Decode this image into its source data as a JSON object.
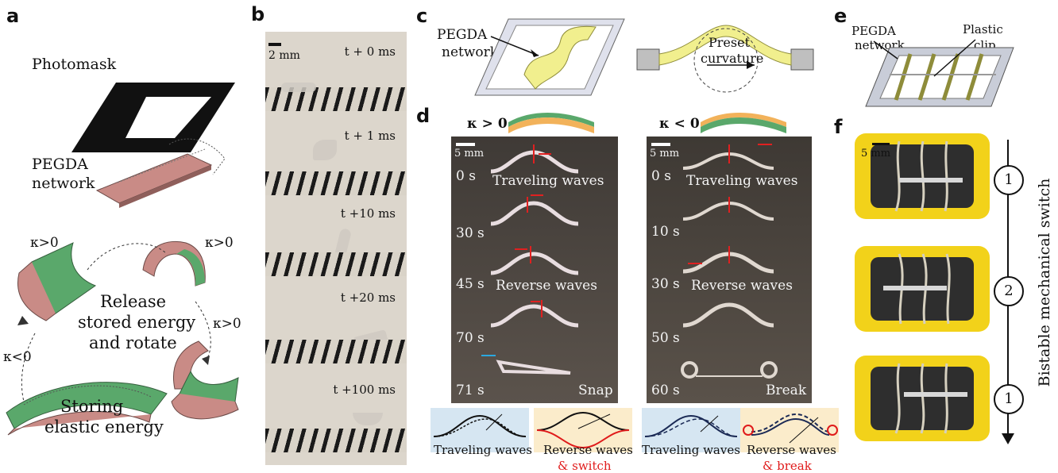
{
  "panels": {
    "a": "a",
    "b": "b",
    "c": "c",
    "d": "d",
    "e": "e",
    "f": "f"
  },
  "panel_a": {
    "photomask": "Photomask",
    "pegda_line1": "PEGDA",
    "pegda_line2": "network",
    "kappa_pos_1": "κ>0",
    "kappa_pos_2": "κ>0",
    "kappa_pos_3": "κ>0",
    "kappa_neg": "κ<0",
    "release_1": "Release",
    "release_2": "stored energy",
    "release_3": "and rotate",
    "storing_1": "Storing",
    "storing_2": "elastic energy"
  },
  "panel_b": {
    "scale": "2 mm",
    "times": [
      "t + 0 ms",
      "t + 1 ms",
      "t +10 ms",
      "t +20 ms",
      "t +100 ms"
    ]
  },
  "panel_c": {
    "pegda_1": "PEGDA",
    "pegda_2": "network",
    "preset_1": "Preset",
    "preset_2": "curvature"
  },
  "panel_d": {
    "kappa_pos": "κ > 0",
    "kappa_neg": "κ < 0",
    "scale_left": "5 mm",
    "scale_right": "5 mm",
    "left_times": [
      "0 s",
      "30 s",
      "45 s",
      "70 s",
      "71 s"
    ],
    "right_times": [
      "0 s",
      "10 s",
      "30 s",
      "50 s",
      "60 s"
    ],
    "left_traveling": "Traveling waves",
    "left_reverse": "Reverse waves",
    "left_snap": "Snap",
    "right_traveling": "Traveling waves",
    "right_reverse": "Reverse waves",
    "right_break": "Break",
    "sch_1": "Traveling waves",
    "sch_2a": "Reverse waves",
    "sch_2b": "& switch",
    "sch_3": "Traveling waves",
    "sch_4a": "Reverse waves",
    "sch_4b": "& break"
  },
  "panel_e": {
    "pegda_1": "PEGDA",
    "pegda_2": "network",
    "clip_1": "Plastic",
    "clip_2": "clip"
  },
  "panel_f": {
    "scale": "5 mm",
    "states": [
      "1",
      "2",
      "1"
    ],
    "vertical": "Bistable mechanical switch"
  },
  "colors": {
    "green": "#5aa86b",
    "pink": "#c98b86",
    "yellow": "#f2d21a",
    "red_text": "#e01b1b",
    "schematic_blue": "#d6e6f2",
    "schematic_cream": "#fbeccb"
  }
}
